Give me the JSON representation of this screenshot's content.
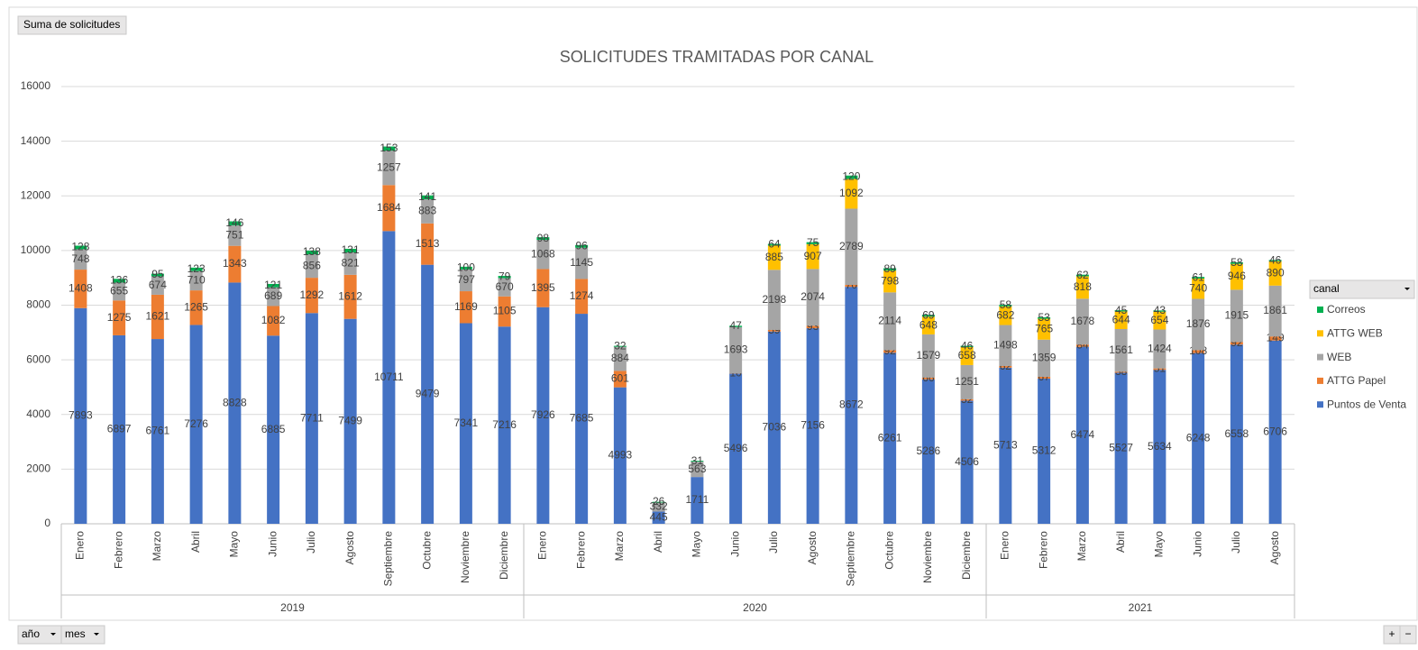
{
  "ui": {
    "value_button": "Suma de solicitudes",
    "legend_field": "canal",
    "row_buttons": [
      "año",
      "mes"
    ],
    "zoom": [
      "+",
      "−"
    ]
  },
  "chart_data": {
    "type": "bar",
    "stacked": true,
    "title": "SOLICITUDES TRAMITADAS POR CANAL",
    "groups": [
      {
        "label": "2019",
        "categories": [
          "Enero",
          "Febrero",
          "Marzo",
          "Abril",
          "Mayo",
          "Junio",
          "Julio",
          "Agosto",
          "Septiembre",
          "Octubre",
          "Noviembre",
          "Diciembre"
        ]
      },
      {
        "label": "2020",
        "categories": [
          "Enero",
          "Febrero",
          "Marzo",
          "Abril",
          "Mayo",
          "Junio",
          "Julio",
          "Agosto",
          "Septiembre",
          "Octubre",
          "Noviembre",
          "Diciembre"
        ]
      },
      {
        "label": "2021",
        "categories": [
          "Enero",
          "Febrero",
          "Marzo",
          "Abril",
          "Mayo",
          "Junio",
          "Julio",
          "Agosto"
        ]
      }
    ],
    "series": [
      {
        "name": "Puntos de Venta",
        "color": "#4472c4",
        "values": [
          7893,
          6897,
          6761,
          7276,
          8828,
          6885,
          7711,
          7499,
          10711,
          9479,
          7341,
          7216,
          7926,
          7685,
          4993,
          445,
          1711,
          5496,
          7036,
          7156,
          8672,
          6261,
          5286,
          4506,
          5713,
          5312,
          6474,
          5527,
          5634,
          6248,
          6558,
          6706
        ]
      },
      {
        "name": "ATTG Papel",
        "color": "#ed7d31",
        "values": [
          1408,
          1275,
          1621,
          1265,
          1343,
          1082,
          1292,
          1612,
          1684,
          1513,
          1169,
          1105,
          1395,
          1274,
          601,
          null,
          null,
          10,
          59,
          93,
          70,
          92,
          66,
          52,
          62,
          67,
          84,
          38,
          51,
          108,
          92,
          149
        ]
      },
      {
        "name": "WEB",
        "color": "#a5a5a5",
        "values": [
          748,
          655,
          674,
          710,
          751,
          689,
          856,
          821,
          1257,
          883,
          797,
          670,
          1068,
          1145,
          884,
          332,
          563,
          1693,
          2198,
          2074,
          2789,
          2114,
          1579,
          1251,
          1498,
          1359,
          1678,
          1561,
          1424,
          1876,
          1915,
          1861
        ]
      },
      {
        "name": "ATTG WEB",
        "color": "#ffc000",
        "values": [
          null,
          null,
          null,
          null,
          null,
          null,
          null,
          null,
          null,
          null,
          null,
          null,
          null,
          null,
          null,
          null,
          null,
          null,
          885,
          907,
          1092,
          798,
          648,
          658,
          682,
          765,
          818,
          644,
          654,
          740,
          946,
          890
        ]
      },
      {
        "name": "Correos",
        "color": "#00b050",
        "values": [
          128,
          136,
          95,
          123,
          146,
          121,
          138,
          131,
          153,
          141,
          100,
          79,
          98,
          96,
          32,
          26,
          31,
          47,
          64,
          75,
          120,
          89,
          69,
          46,
          58,
          53,
          62,
          45,
          43,
          61,
          58,
          46
        ]
      }
    ],
    "ylim": [
      0,
      16000
    ],
    "yticks": [
      0,
      2000,
      4000,
      6000,
      8000,
      10000,
      12000,
      14000,
      16000
    ],
    "grid": true,
    "legend": "right"
  }
}
